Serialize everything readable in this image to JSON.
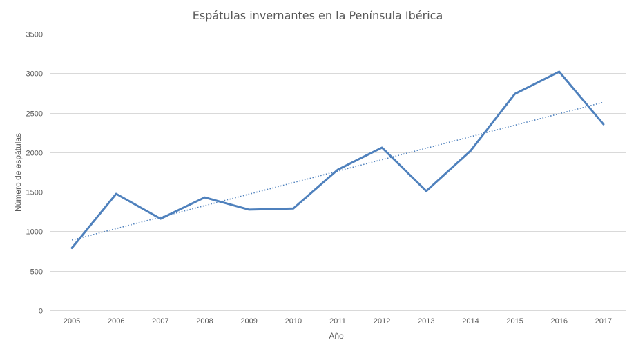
{
  "chart_data": {
    "type": "line",
    "title": "Espátulas invernantes en la Península Ibérica",
    "xlabel": "Año",
    "ylabel": "Número de espátulas",
    "categories": [
      "2005",
      "2006",
      "2007",
      "2008",
      "2009",
      "2010",
      "2011",
      "2012",
      "2013",
      "2014",
      "2015",
      "2016",
      "2017"
    ],
    "series": [
      {
        "name": "Espátulas invernantes",
        "values": [
          790,
          1475,
          1160,
          1430,
          1275,
          1290,
          1780,
          2060,
          1510,
          2020,
          2740,
          3020,
          2355
        ],
        "color": "#4f81bd"
      }
    ],
    "trendline": {
      "type": "linear",
      "style": "dotted",
      "color": "#4f81bd"
    },
    "ylim": [
      0,
      3500
    ],
    "yticks": [
      0,
      500,
      1000,
      1500,
      2000,
      2500,
      3000,
      3500
    ],
    "grid": true,
    "legend": "none"
  }
}
